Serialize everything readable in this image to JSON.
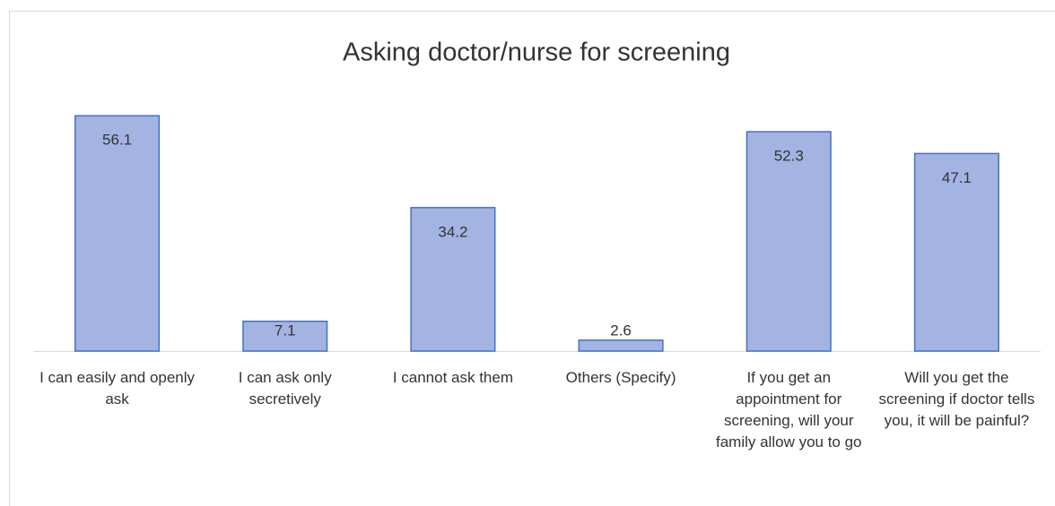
{
  "chart_data": {
    "type": "bar",
    "title": "Asking doctor/nurse for screening",
    "categories": [
      "I can easily and openly ask",
      "I can ask only secretively",
      "I cannot ask them",
      "Others (Specify)",
      "If you get an appointment for screening, will your family allow you to go",
      "Will you get the screening if doctor tells you, it will be painful?"
    ],
    "values": [
      56.1,
      7.1,
      34.2,
      2.6,
      52.3,
      47.1
    ],
    "color": "#a3b4e2",
    "edge_color": "#4472c4",
    "ylim": [
      0,
      60
    ],
    "grid": false
  }
}
